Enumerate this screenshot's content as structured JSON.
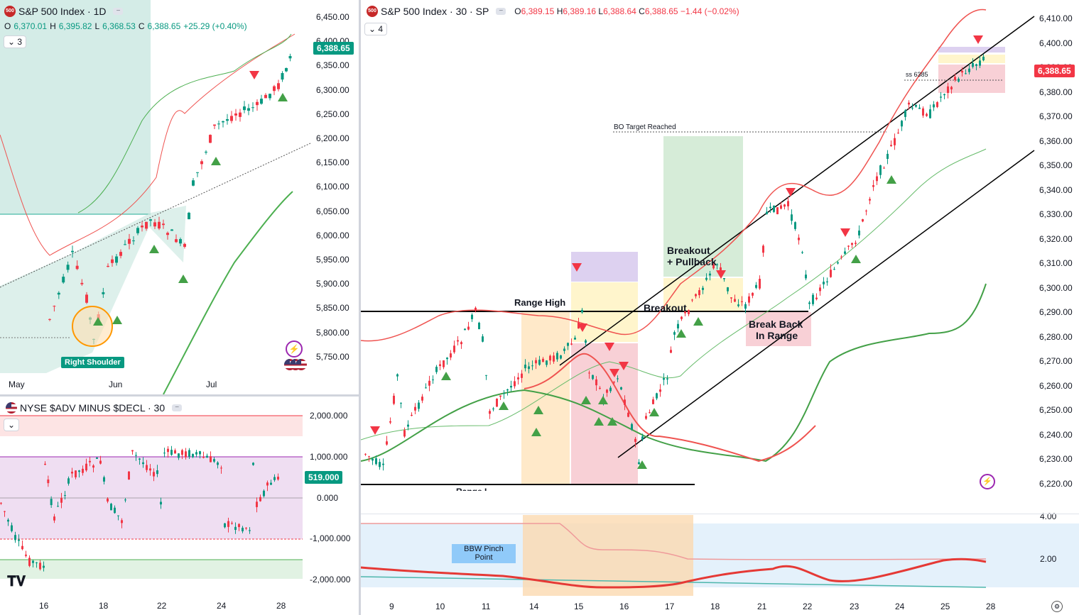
{
  "left_top": {
    "symbol_badge": "500",
    "title": "S&P 500 Index · 1D",
    "ohlc": {
      "o": "O",
      "o_val": "6,370.01",
      "h": "H",
      "h_val": "6,395.82",
      "l": "L",
      "l_val": "6,368.53",
      "c": "C",
      "c_val": "6,388.65",
      "chg": "+25.29 (+0.40%)"
    },
    "indicators_count": "3",
    "price_axis": [
      "6,450.00",
      "6,400.00",
      "6,350.00",
      "6,300.00",
      "6,250.00",
      "6,200.00",
      "6,150.00",
      "6,100.00",
      "6,050.00",
      "6,000.00",
      "5,950.00",
      "5,900.00",
      "5,850.00",
      "5,800.00",
      "5,750.00"
    ],
    "current_price": "6,388.65",
    "time_axis": [
      "May",
      "Jun",
      "Jul"
    ],
    "annotation_right_shoulder": "Right Shoulder"
  },
  "left_bottom": {
    "title": "NYSE $ADV MINUS $DECL · 30",
    "axis": [
      "2,000.000",
      "1,000.000",
      "0.000",
      "-1,000.000",
      "-2,000.000"
    ],
    "current_value": "519.000",
    "time_axis": [
      "16",
      "18",
      "22",
      "24",
      "28"
    ]
  },
  "right": {
    "symbol_badge": "500",
    "title": "S&P 500 Index · 30 · SP",
    "ohlc": {
      "o": "O",
      "o_val": "6,389.15",
      "h": "H",
      "h_val": "6,389.16",
      "l": "L",
      "l_val": "6,388.64",
      "c": "C",
      "c_val": "6,388.65",
      "chg": "−1.44 (−0.02%)"
    },
    "indicators_count": "4",
    "price_axis": [
      "6,410.00",
      "6,400.00",
      "6,390.00",
      "6,380.00",
      "6,370.00",
      "6,360.00",
      "6,350.00",
      "6,340.00",
      "6,330.00",
      "6,320.00",
      "6,310.00",
      "6,300.00",
      "6,290.00",
      "6,280.00",
      "6,270.00",
      "6,260.00",
      "6,250.00",
      "6,240.00",
      "6,230.00",
      "6,220.00"
    ],
    "current_price": "6,388.65",
    "bbw_axis": [
      "4.00",
      "2.00"
    ],
    "time_axis": [
      "9",
      "10",
      "11",
      "14",
      "15",
      "16",
      "17",
      "18",
      "21",
      "22",
      "23",
      "24",
      "25",
      "28"
    ],
    "annotations": {
      "range_high": "Range High",
      "breakout": "Breakout",
      "breakout_pullback_1": "Breakout",
      "breakout_pullback_2": "+ Pullback",
      "break_back_1": "Break Back",
      "break_back_2": "In Range",
      "bo_target": "BO Target Reached",
      "ss_level": "ss 6385",
      "bbw_pinch_1": "BBW Pinch",
      "bbw_pinch_2": "Point",
      "range_low_partial": "Range L"
    }
  },
  "colors": {
    "up": "#089981",
    "down": "#f23645",
    "green_band": "#4caf50",
    "red_band": "#f44336",
    "teal": "#22ab94"
  }
}
